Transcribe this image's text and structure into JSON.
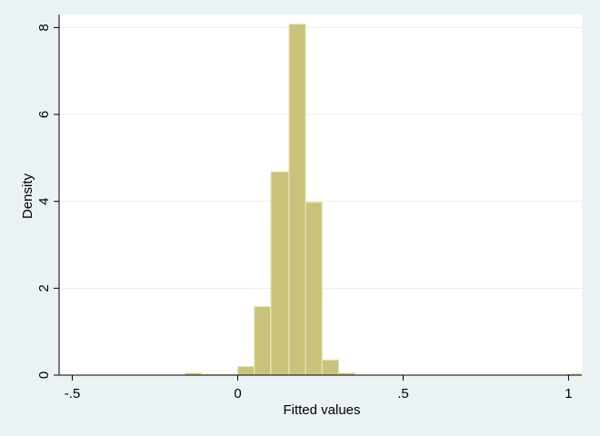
{
  "chart_data": {
    "type": "bar",
    "subtype": "histogram",
    "xlabel": "Fitted values",
    "ylabel": "Density",
    "xlim": [
      -0.54,
      1.04
    ],
    "ylim": [
      0,
      8.3
    ],
    "x_ticks": [
      -0.5,
      0,
      0.5,
      1
    ],
    "x_tick_labels": [
      "-.5",
      "0",
      ".5",
      "1"
    ],
    "y_ticks": [
      0,
      2,
      4,
      6,
      8
    ],
    "y_tick_labels": [
      "0",
      "2",
      "4",
      "6",
      "8"
    ],
    "grid": true,
    "bar_color": "#c8c27a",
    "bar_edge_color": "#e9e6bf",
    "background": "#eaf2f3",
    "plot_background": "#ffffff",
    "bins": [
      {
        "x0": -0.16,
        "x1": -0.11,
        "density": 0.05
      },
      {
        "x0": -0.11,
        "x1": -0.06,
        "density": 0.02
      },
      {
        "x0": -0.06,
        "x1": 0.0,
        "density": 0.02
      },
      {
        "x0": 0.0,
        "x1": 0.05,
        "density": 0.2
      },
      {
        "x0": 0.05,
        "x1": 0.1,
        "density": 1.58
      },
      {
        "x0": 0.1,
        "x1": 0.155,
        "density": 4.68
      },
      {
        "x0": 0.155,
        "x1": 0.205,
        "density": 8.08
      },
      {
        "x0": 0.205,
        "x1": 0.255,
        "density": 3.98
      },
      {
        "x0": 0.255,
        "x1": 0.305,
        "density": 0.35
      },
      {
        "x0": 0.305,
        "x1": 0.355,
        "density": 0.05
      },
      {
        "x0": 0.995,
        "x1": 1.04,
        "density": 0.03
      }
    ]
  }
}
